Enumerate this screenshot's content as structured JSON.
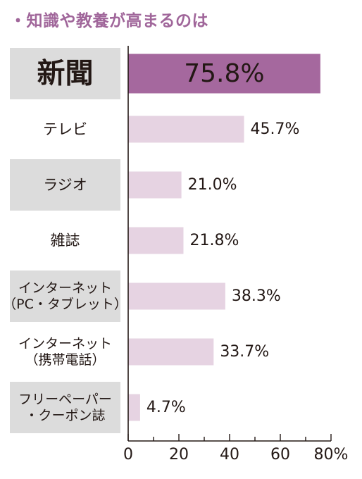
{
  "colors": {
    "highlight_bar": "#a5689e",
    "bar": "#e6d3e2",
    "label_box": "#dcdcdc",
    "axis": "#231815",
    "title": "#a0669a"
  },
  "chart_data": {
    "type": "bar",
    "orientation": "horizontal",
    "title": "・知識や教養が高まるのは",
    "categories": [
      [
        "新聞"
      ],
      [
        "テレビ"
      ],
      [
        "ラジオ"
      ],
      [
        "雑誌"
      ],
      [
        "インターネット",
        "（PC・タブレット）"
      ],
      [
        "インターネット",
        "（携帯電話）"
      ],
      [
        "フリーペーパー",
        "・クーポン誌"
      ]
    ],
    "values": [
      75.8,
      45.7,
      21.0,
      21.8,
      38.3,
      33.7,
      4.7
    ],
    "value_labels": [
      "75.8%",
      "45.7%",
      "21.0%",
      "21.8%",
      "38.3%",
      "33.7%",
      "4.7%"
    ],
    "highlight_index": 0,
    "xlim": [
      0,
      80
    ],
    "xticks": [
      0,
      20,
      40,
      60,
      80
    ],
    "xtick_labels": [
      "0",
      "20",
      "40",
      "60",
      "80%"
    ],
    "grid": false,
    "legend": "none"
  }
}
